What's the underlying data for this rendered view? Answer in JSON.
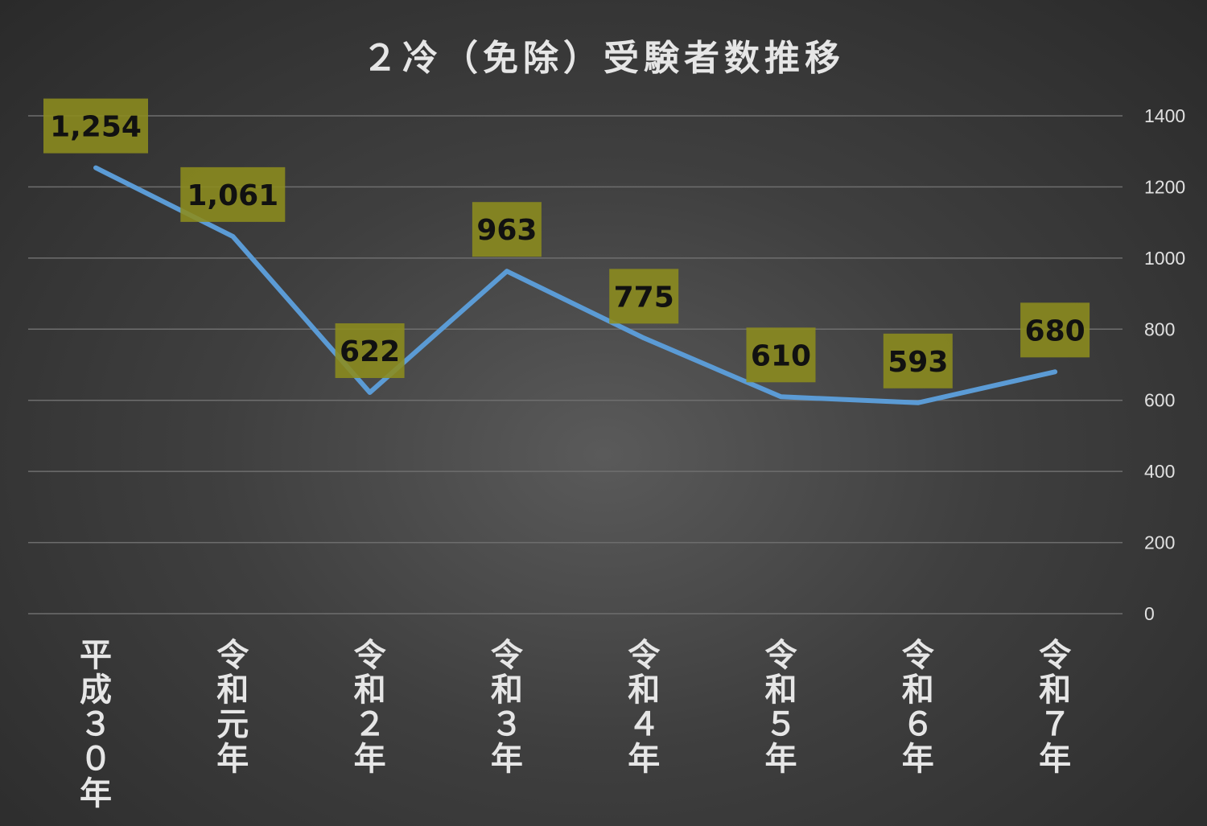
{
  "chart_data": {
    "type": "line",
    "title": "２冷（免除）受験者数推移",
    "categories": [
      "平成３０年",
      "令和元年",
      "令和２年",
      "令和３年",
      "令和４年",
      "令和５年",
      "令和６年",
      "令和７年"
    ],
    "series": [
      {
        "values": [
          1254,
          1061,
          622,
          963,
          775,
          610,
          593,
          680
        ],
        "data_labels": [
          "1,254",
          "1,061",
          "622",
          "963",
          "775",
          "610",
          "593",
          "680"
        ],
        "color": "#5b9bd5"
      }
    ],
    "y_ticks": [
      "0",
      "200",
      "400",
      "600",
      "800",
      "1000",
      "1200",
      "1400"
    ],
    "ylim": [
      0,
      1400
    ],
    "y_axis_position": "right",
    "grid": true,
    "legend": "none",
    "label_box_color": "#8c8c1e"
  }
}
